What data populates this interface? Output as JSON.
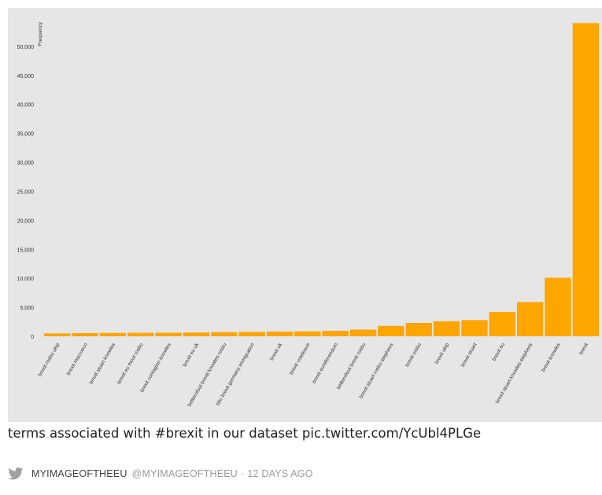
{
  "chart_data": {
    "type": "bar",
    "ylabel": "Frequency",
    "ylim": [
      0,
      55000
    ],
    "yticks": [
      0,
      5000,
      10000,
      15000,
      20000,
      25000,
      30000,
      35000,
      40000,
      45000,
      50000
    ],
    "ytick_labels": [
      "0",
      "5,000",
      "10,000",
      "15,000",
      "20,000",
      "25,000",
      "30,000",
      "35,000",
      "40,000",
      "45,000",
      "50,000"
    ],
    "bar_color": "#ffa500",
    "background": "#e6e6e6",
    "grid": false,
    "categories": [
      "brexit rosbu ukip",
      "brexit macroeco",
      "brexit stuart knowles",
      "brexit eu mout rosbu",
      "brexit contagion knowles",
      "brexit eu uk",
      "betterofout brexit knowles rosbu",
      "bbc brexit germany immigration",
      "brexit uk",
      "brexit voteleave",
      "brexit eureferendum",
      "betterofout brexit rosbu",
      "brexit stuart rosbu stephens",
      "brexit rosbu",
      "brexit ukip",
      "brexit stuart",
      "brexit eu",
      "brexit stuart knowles stephens",
      "brexit knowles",
      "brexit"
    ],
    "values": [
      500,
      550,
      580,
      600,
      620,
      650,
      700,
      750,
      800,
      850,
      950,
      1150,
      1800,
      2300,
      2600,
      2800,
      4200,
      5900,
      10100,
      54000
    ]
  },
  "tweet": {
    "text": "terms associated with #brexit in our dataset pic.twitter.com/YcUbl4PLGe",
    "author_name": "MYIMAGEOFTHEEU",
    "author_handle": "@MYIMAGEOFTHEEU",
    "separator": "·",
    "time_ago": "12 DAYS AGO",
    "icon": "twitter-bird-icon",
    "icon_color": "#a0a0a0"
  }
}
